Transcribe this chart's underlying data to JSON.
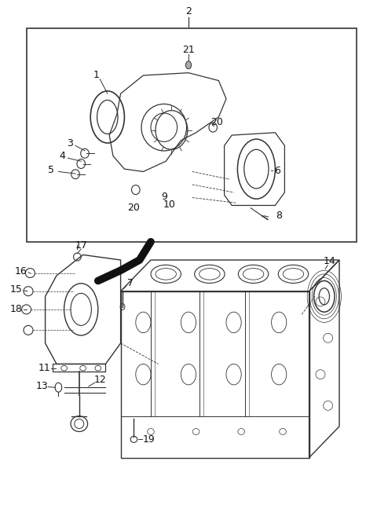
{
  "bg_color": "#ffffff",
  "line_color": "#333333",
  "text_color": "#111111",
  "font_size": 9,
  "dpi": 100,
  "fig_width": 4.8,
  "fig_height": 6.62
}
